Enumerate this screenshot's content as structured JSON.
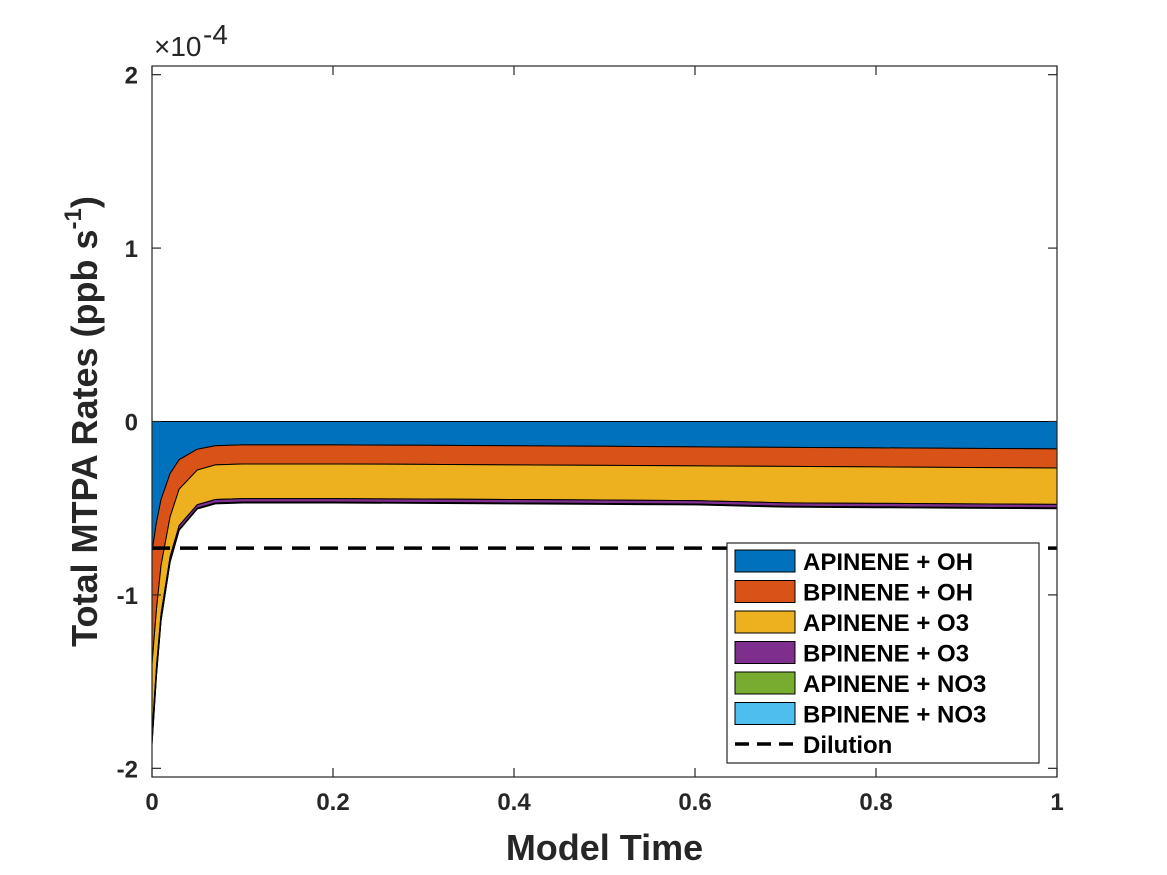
{
  "chart_data": {
    "type": "area",
    "xlabel": "Model Time",
    "ylabel": "Total MTPA Rates (ppb s",
    "ylabel_sup": "-1",
    "ylabel_close": ")",
    "y_multiplier_prefix": "×10",
    "y_multiplier_exp": "-4",
    "xlim": [
      0,
      1
    ],
    "ylim": [
      -2.05,
      2.05
    ],
    "x_ticks": [
      0,
      0.2,
      0.4,
      0.6,
      0.8,
      1
    ],
    "x_tick_labels": [
      "0",
      "0.2",
      "0.4",
      "0.6",
      "0.8",
      "1"
    ],
    "y_ticks": [
      -2,
      -1,
      0,
      1,
      2
    ],
    "y_tick_labels": [
      "-2",
      "-1",
      "0",
      "1",
      "2"
    ],
    "grid": false,
    "legend_position": "bottom-right",
    "x": [
      0,
      0.005,
      0.01,
      0.02,
      0.03,
      0.05,
      0.07,
      0.1,
      0.15,
      0.2,
      0.3,
      0.4,
      0.5,
      0.6,
      0.7,
      0.8,
      0.9,
      1.0
    ],
    "series": [
      {
        "name": "APINENE + OH",
        "color": "#0072BD",
        "values": [
          -0.75,
          -0.58,
          -0.45,
          -0.3,
          -0.22,
          -0.16,
          -0.14,
          -0.135,
          -0.135,
          -0.135,
          -0.137,
          -0.14,
          -0.143,
          -0.146,
          -0.149,
          -0.152,
          -0.155,
          -0.158
        ]
      },
      {
        "name": "BPINENE + OH",
        "color": "#D95319",
        "values": [
          -0.65,
          -0.5,
          -0.38,
          -0.25,
          -0.17,
          -0.12,
          -0.11,
          -0.11,
          -0.11,
          -0.11,
          -0.11,
          -0.11,
          -0.11,
          -0.11,
          -0.11,
          -0.11,
          -0.11,
          -0.11
        ]
      },
      {
        "name": "APINENE + O3",
        "color": "#EDB120",
        "values": [
          -0.4,
          -0.33,
          -0.28,
          -0.23,
          -0.21,
          -0.2,
          -0.2,
          -0.2,
          -0.2,
          -0.2,
          -0.2,
          -0.2,
          -0.2,
          -0.2,
          -0.21,
          -0.21,
          -0.21,
          -0.21
        ]
      },
      {
        "name": "BPINENE + O3",
        "color": "#7E2F8E",
        "values": [
          -0.05,
          -0.04,
          -0.03,
          -0.025,
          -0.022,
          -0.02,
          -0.02,
          -0.02,
          -0.02,
          -0.02,
          -0.02,
          -0.02,
          -0.02,
          -0.02,
          -0.02,
          -0.02,
          -0.02,
          -0.02
        ]
      },
      {
        "name": "APINENE + NO3",
        "color": "#77AC30",
        "values": [
          -0.01,
          -0.008,
          -0.007,
          -0.005,
          -0.004,
          -0.003,
          -0.003,
          -0.003,
          -0.003,
          -0.003,
          -0.003,
          -0.003,
          -0.003,
          -0.003,
          -0.003,
          -0.003,
          -0.003,
          -0.003
        ]
      },
      {
        "name": "BPINENE + NO3",
        "color": "#4DBEEE",
        "values": [
          -0.005,
          -0.004,
          -0.003,
          -0.002,
          -0.002,
          -0.002,
          -0.002,
          -0.002,
          -0.002,
          -0.002,
          -0.002,
          -0.002,
          -0.002,
          -0.002,
          -0.002,
          -0.002,
          -0.002,
          -0.002
        ]
      }
    ],
    "dilution": {
      "name": "Dilution",
      "value": -0.73,
      "color": "#000000",
      "style": "dashed"
    }
  }
}
